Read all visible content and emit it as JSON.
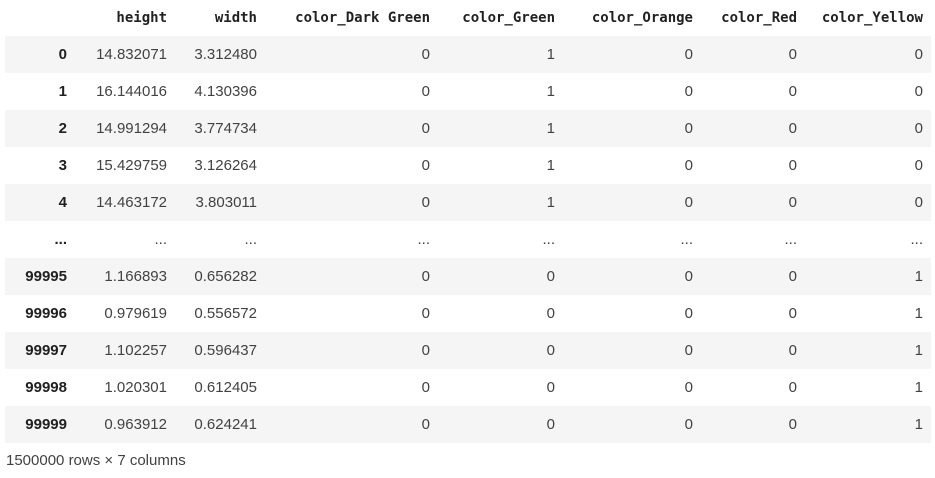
{
  "dataframe": {
    "columns": [
      "height",
      "width",
      "color_Dark Green",
      "color_Green",
      "color_Orange",
      "color_Red",
      "color_Yellow"
    ],
    "rows": [
      {
        "index": "0",
        "values": [
          "14.832071",
          "3.312480",
          "0",
          "1",
          "0",
          "0",
          "0"
        ]
      },
      {
        "index": "1",
        "values": [
          "16.144016",
          "4.130396",
          "0",
          "1",
          "0",
          "0",
          "0"
        ]
      },
      {
        "index": "2",
        "values": [
          "14.991294",
          "3.774734",
          "0",
          "1",
          "0",
          "0",
          "0"
        ]
      },
      {
        "index": "3",
        "values": [
          "15.429759",
          "3.126264",
          "0",
          "1",
          "0",
          "0",
          "0"
        ]
      },
      {
        "index": "4",
        "values": [
          "14.463172",
          "3.803011",
          "0",
          "1",
          "0",
          "0",
          "0"
        ]
      },
      {
        "index": "...",
        "values": [
          "...",
          "...",
          "...",
          "...",
          "...",
          "...",
          "..."
        ]
      },
      {
        "index": "99995",
        "values": [
          "1.166893",
          "0.656282",
          "0",
          "0",
          "0",
          "0",
          "1"
        ]
      },
      {
        "index": "99996",
        "values": [
          "0.979619",
          "0.556572",
          "0",
          "0",
          "0",
          "0",
          "1"
        ]
      },
      {
        "index": "99997",
        "values": [
          "1.102257",
          "0.596437",
          "0",
          "0",
          "0",
          "0",
          "1"
        ]
      },
      {
        "index": "99998",
        "values": [
          "1.020301",
          "0.612405",
          "0",
          "0",
          "0",
          "0",
          "1"
        ]
      },
      {
        "index": "99999",
        "values": [
          "0.963912",
          "0.624241",
          "0",
          "0",
          "0",
          "0",
          "1"
        ]
      }
    ],
    "shape_text": "1500000 rows × 7 columns"
  }
}
